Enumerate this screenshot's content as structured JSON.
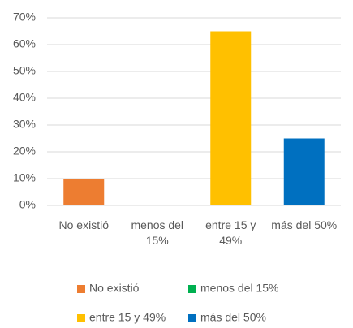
{
  "chart_data": {
    "type": "bar",
    "categories": [
      "No existió",
      "menos del 15%",
      "entre 15 y 49%",
      "más del 50%"
    ],
    "values": [
      10,
      0,
      65,
      25
    ],
    "colors": [
      "#ed7d31",
      "#00b050",
      "#ffc000",
      "#0070c0"
    ],
    "ylim": [
      0,
      70
    ],
    "yticks": [
      {
        "value": 0,
        "label": "0%"
      },
      {
        "value": 10,
        "label": "10%"
      },
      {
        "value": 20,
        "label": "20%"
      },
      {
        "value": 30,
        "label": "30%"
      },
      {
        "value": 40,
        "label": "40%"
      },
      {
        "value": 50,
        "label": "50%"
      },
      {
        "value": 60,
        "label": "60%"
      },
      {
        "value": 70,
        "label": "70%"
      }
    ],
    "grid": true
  }
}
